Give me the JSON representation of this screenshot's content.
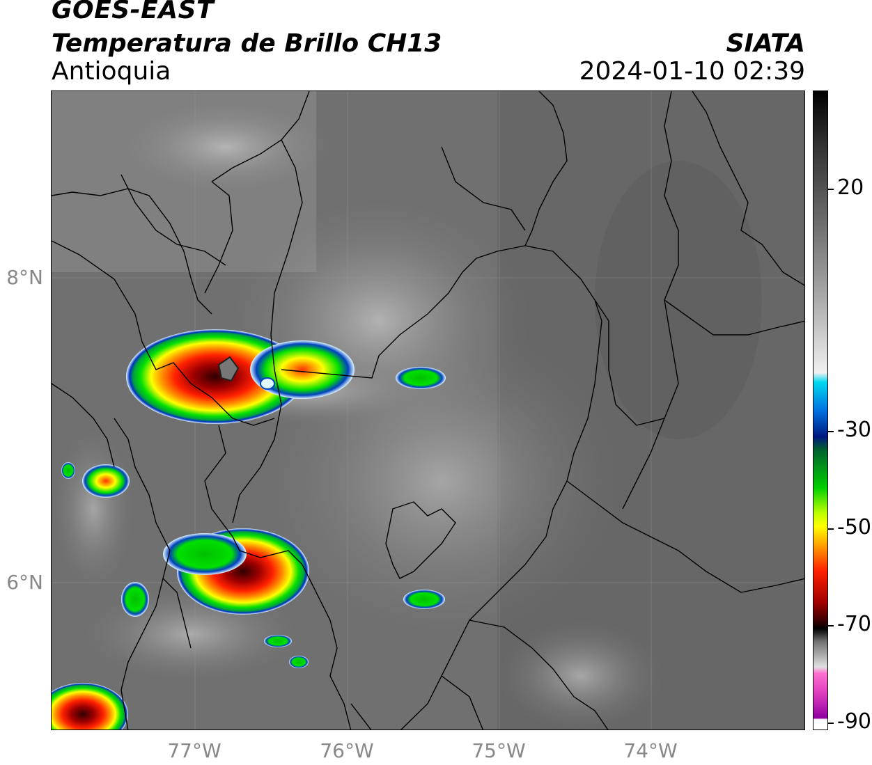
{
  "header": {
    "line1": "GOES-EAST",
    "line2": "Temperatura de Brillo CH13",
    "line3": "Antioquia",
    "organization": "SIATA",
    "timestamp": "2024-01-10 02:39"
  },
  "axes": {
    "lat_labels": [
      "8°N",
      "6°N"
    ],
    "lon_labels": [
      "77°W",
      "76°W",
      "75°W",
      "74°W"
    ]
  },
  "colorbar": {
    "labels": [
      "20",
      "-30",
      "-50",
      "-70",
      "-90"
    ],
    "stops": [
      "#000000",
      "#4d4d4d",
      "#9a9a9a",
      "#ffffff",
      "#00d8f0",
      "#0020a0",
      "#00a040",
      "#00ff00",
      "#ffff00",
      "#ff8000",
      "#ff0000",
      "#700000",
      "#000000",
      "#d0d0d0",
      "#ff60c0",
      "#a000a0",
      "#ffffff"
    ]
  }
}
